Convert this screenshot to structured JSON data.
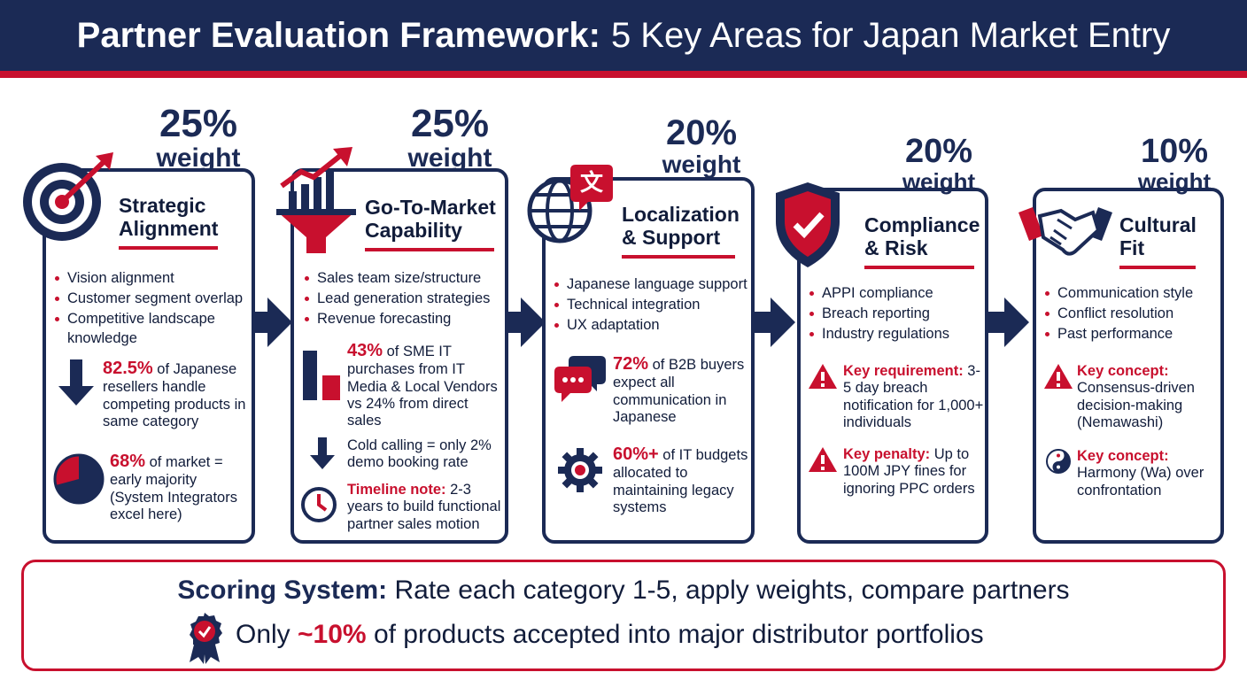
{
  "header": {
    "title_bold": "Partner Evaluation Framework:",
    "title_rest": "5 Key Areas for Japan Market Entry"
  },
  "colors": {
    "navy": "#1b2a55",
    "red": "#c8102e"
  },
  "weight_label": "weight",
  "cards": [
    {
      "weight": "25%",
      "title_line1": "Strategic",
      "title_line2": "Alignment",
      "icon": "target-icon",
      "bullets": [
        "Vision alignment",
        "Customer segment overlap",
        "Competitive landscape knowledge"
      ],
      "stats": [
        {
          "icon": "down-arrow-icon",
          "highlight": "82.5%",
          "text": " of Japanese resellers handle competing products in same category"
        },
        {
          "icon": "pie-chart-icon",
          "highlight": "68%",
          "text": " of market = early majority (System Integrators excel here)"
        }
      ]
    },
    {
      "weight": "25%",
      "title_line1": "Go-To-Market",
      "title_line2": "Capability",
      "icon": "funnel-growth-icon",
      "bullets": [
        "Sales team size/structure",
        "Lead generation strategies",
        "Revenue forecasting"
      ],
      "stats": [
        {
          "icon": "bar-chart-icon",
          "highlight": "43%",
          "text": " of SME IT purchases from IT Media & Local Vendors vs 24% from direct sales"
        },
        {
          "icon": "down-arrow-icon",
          "highlight": "",
          "text": "Cold calling = only 2% demo booking rate"
        },
        {
          "icon": "clock-icon",
          "highlight": "Timeline note:",
          "text": " 2-3 years to build functional partner sales motion"
        }
      ]
    },
    {
      "weight": "20%",
      "title_line1": "Localization",
      "title_line2": "& Support",
      "icon": "globe-translate-icon",
      "translate_glyph": "文",
      "bullets": [
        "Japanese language support",
        "Technical integration",
        "UX adaptation"
      ],
      "stats": [
        {
          "icon": "chat-bubbles-icon",
          "highlight": "72%",
          "text": " of B2B buyers expect all communication in Japanese"
        },
        {
          "icon": "gear-icon",
          "highlight": "60%+",
          "text": " of IT budgets allocated to maintaining legacy systems"
        }
      ]
    },
    {
      "weight": "20%",
      "title_line1": "Compliance",
      "title_line2": "& Risk",
      "icon": "shield-check-icon",
      "bullets": [
        "APPI compliance",
        "Breach reporting",
        "Industry regulations"
      ],
      "stats": [
        {
          "icon": "warning-icon",
          "highlight": "Key requirement:",
          "text": " 3-5 day breach notification for 1,000+ individuals"
        },
        {
          "icon": "warning-icon",
          "highlight": "Key penalty:",
          "text": " Up to 100M JPY fines for ignoring PPC orders"
        }
      ]
    },
    {
      "weight": "10%",
      "title_line1": "Cultural",
      "title_line2": "Fit",
      "icon": "handshake-icon",
      "bullets": [
        "Communication style",
        "Conflict resolution",
        "Past performance"
      ],
      "stats": [
        {
          "icon": "warning-icon",
          "highlight": "Key concept:",
          "text": " Consensus-driven decision-making (Nemawashi)"
        },
        {
          "icon": "yin-yang-icon",
          "highlight": "Key concept:",
          "text": " Harmony (Wa) over confrontation"
        }
      ]
    }
  ],
  "footer": {
    "scoring_label": "Scoring System:",
    "scoring_text": " Rate each category 1-5, apply weights, compare partners",
    "accept_prefix": "Only ",
    "accept_highlight": "~10%",
    "accept_suffix": " of products accepted into major distributor portfolios",
    "icon": "award-badge-icon"
  }
}
